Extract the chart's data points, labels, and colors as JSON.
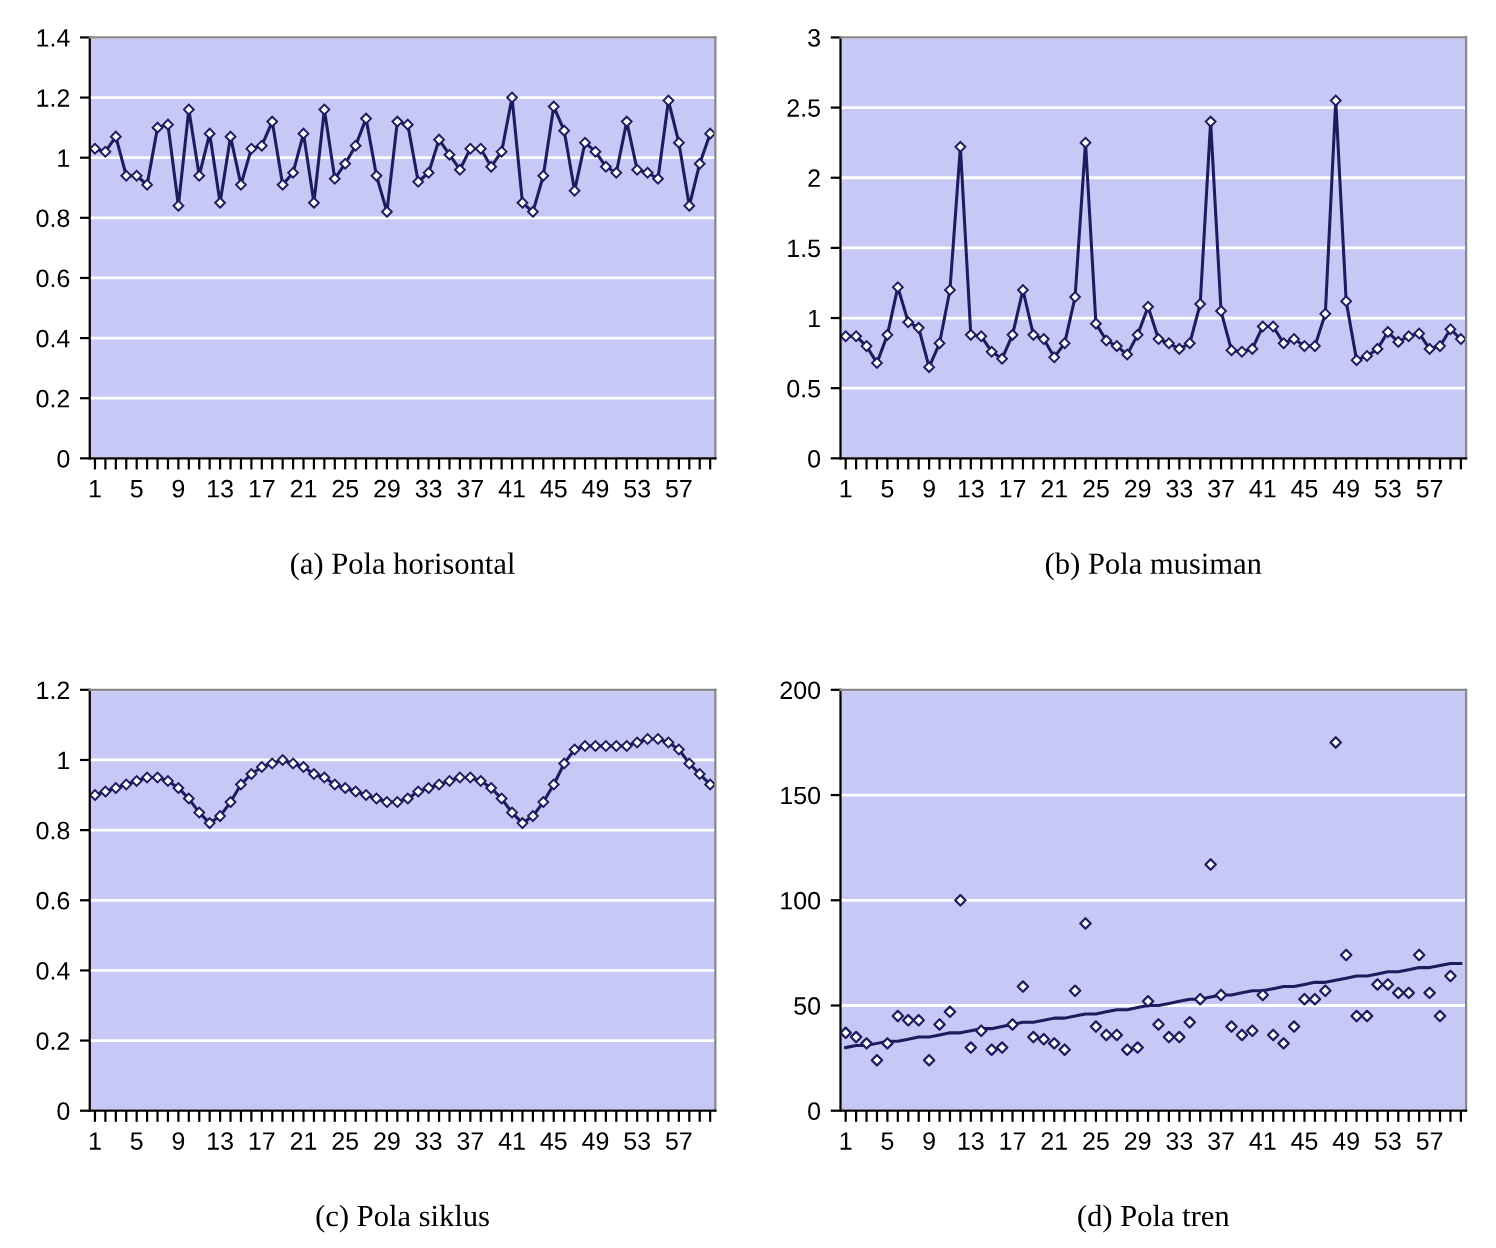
{
  "chart_data": [
    {
      "type": "line",
      "xlabel": "(a) Pola horisontal",
      "categories": [
        "1",
        null,
        null,
        null,
        "5",
        null,
        null,
        null,
        "9",
        null,
        null,
        null,
        "13",
        null,
        null,
        null,
        "17",
        null,
        null,
        null,
        "21",
        null,
        null,
        null,
        "25",
        null,
        null,
        null,
        "29",
        null,
        null,
        null,
        "33",
        null,
        null,
        null,
        "37",
        null,
        null,
        null,
        "41",
        null,
        null,
        null,
        "45",
        null,
        null,
        null,
        "49",
        null,
        null,
        null,
        "53",
        null,
        null,
        null,
        "57",
        null,
        null,
        null
      ],
      "series": [
        {
          "color": "#1c1c5e",
          "values": [
            1.03,
            1.02,
            1.07,
            0.94,
            0.94,
            0.91,
            1.1,
            1.11,
            0.84,
            1.16,
            0.94,
            1.08,
            0.85,
            1.07,
            0.91,
            1.03,
            1.04,
            1.12,
            0.91,
            0.95,
            1.08,
            0.85,
            1.16,
            0.93,
            0.98,
            1.04,
            1.13,
            0.94,
            0.82,
            1.12,
            1.11,
            0.92,
            0.95,
            1.06,
            1.01,
            0.96,
            1.03,
            1.03,
            0.97,
            1.02,
            1.2,
            0.85,
            0.82,
            0.94,
            1.17,
            1.09,
            0.89,
            1.05,
            1.02,
            0.97,
            0.95,
            1.12,
            0.96,
            0.95,
            0.93,
            1.19,
            1.05,
            0.84,
            0.98,
            1.08
          ]
        }
      ],
      "ylim": [
        0,
        1.4
      ],
      "yticks": [
        0,
        0.2,
        0.4,
        0.6,
        0.8,
        1,
        1.2,
        1.4
      ],
      "grid": "y",
      "marker": "diamond",
      "line_style": "solid"
    },
    {
      "type": "line",
      "xlabel": "(b) Pola musiman",
      "categories": [
        "1",
        null,
        null,
        null,
        "5",
        null,
        null,
        null,
        "9",
        null,
        null,
        null,
        "13",
        null,
        null,
        null,
        "17",
        null,
        null,
        null,
        "21",
        null,
        null,
        null,
        "25",
        null,
        null,
        null,
        "29",
        null,
        null,
        null,
        "33",
        null,
        null,
        null,
        "37",
        null,
        null,
        null,
        "41",
        null,
        null,
        null,
        "45",
        null,
        null,
        null,
        "49",
        null,
        null,
        null,
        "53",
        null,
        null,
        null,
        "57",
        null,
        null,
        null
      ],
      "series": [
        {
          "color": "#1c1c5e",
          "values": [
            0.87,
            0.87,
            0.8,
            0.68,
            0.88,
            1.22,
            0.97,
            0.93,
            0.65,
            0.82,
            1.2,
            2.22,
            0.88,
            0.87,
            0.76,
            0.71,
            0.88,
            1.2,
            0.88,
            0.85,
            0.72,
            0.82,
            1.15,
            2.25,
            0.96,
            0.84,
            0.8,
            0.74,
            0.88,
            1.08,
            0.85,
            0.82,
            0.78,
            0.82,
            1.1,
            2.4,
            1.05,
            0.77,
            0.76,
            0.78,
            0.94,
            0.94,
            0.82,
            0.85,
            0.8,
            0.8,
            1.03,
            2.55,
            1.12,
            0.7,
            0.73,
            0.78,
            0.9,
            0.83,
            0.87,
            0.89,
            0.78,
            0.8,
            0.92,
            0.85
          ]
        }
      ],
      "ylim": [
        0,
        3
      ],
      "yticks": [
        0,
        0.5,
        1,
        1.5,
        2,
        2.5,
        3
      ],
      "grid": "y",
      "marker": "diamond",
      "line_style": "solid"
    },
    {
      "type": "line",
      "xlabel": "(c) Pola siklus",
      "categories": [
        "1",
        null,
        null,
        null,
        "5",
        null,
        null,
        null,
        "9",
        null,
        null,
        null,
        "13",
        null,
        null,
        null,
        "17",
        null,
        null,
        null,
        "21",
        null,
        null,
        null,
        "25",
        null,
        null,
        null,
        "29",
        null,
        null,
        null,
        "33",
        null,
        null,
        null,
        "37",
        null,
        null,
        null,
        "41",
        null,
        null,
        null,
        "45",
        null,
        null,
        null,
        "49",
        null,
        null,
        null,
        "53",
        null,
        null,
        null,
        "57",
        null,
        null,
        null
      ],
      "series": [
        {
          "color": "#1c1c5e",
          "values": [
            0.9,
            0.91,
            0.92,
            0.93,
            0.94,
            0.95,
            0.95,
            0.94,
            0.92,
            0.89,
            0.85,
            0.82,
            0.84,
            0.88,
            0.93,
            0.96,
            0.98,
            0.99,
            1.0,
            0.99,
            0.98,
            0.96,
            0.95,
            0.93,
            0.92,
            0.91,
            0.9,
            0.89,
            0.88,
            0.88,
            0.89,
            0.91,
            0.92,
            0.93,
            0.94,
            0.95,
            0.95,
            0.94,
            0.92,
            0.89,
            0.85,
            0.82,
            0.84,
            0.88,
            0.93,
            0.99,
            1.03,
            1.04,
            1.04,
            1.04,
            1.04,
            1.04,
            1.05,
            1.06,
            1.06,
            1.05,
            1.03,
            0.99,
            0.96,
            0.93
          ]
        }
      ],
      "ylim": [
        0,
        1.2
      ],
      "yticks": [
        0,
        0.2,
        0.4,
        0.6,
        0.8,
        1,
        1.2
      ],
      "grid": "y",
      "marker": "diamond",
      "line_style": "solid"
    },
    {
      "type": "scatter",
      "xlabel": "(d) Pola tren",
      "categories": [
        "1",
        null,
        null,
        null,
        "5",
        null,
        null,
        null,
        "9",
        null,
        null,
        null,
        "13",
        null,
        null,
        null,
        "17",
        null,
        null,
        null,
        "21",
        null,
        null,
        null,
        "25",
        null,
        null,
        null,
        "29",
        null,
        null,
        null,
        "33",
        null,
        null,
        null,
        "37",
        null,
        null,
        null,
        "41",
        null,
        null,
        null,
        "45",
        null,
        null,
        null,
        "49",
        null,
        null,
        null,
        "53",
        null,
        null,
        null,
        "57",
        null,
        null,
        null
      ],
      "series": [
        {
          "color": "#1c1c5e",
          "values": [
            37,
            35,
            32,
            24,
            32,
            45,
            43,
            43,
            24,
            41,
            47,
            100,
            30,
            38,
            29,
            30,
            41,
            59,
            35,
            34,
            32,
            29,
            57,
            89,
            40,
            36,
            36,
            29,
            30,
            52,
            41,
            35,
            35,
            42,
            53,
            117,
            55,
            40,
            36,
            38,
            55,
            36,
            32,
            40,
            53,
            53,
            57,
            175,
            74,
            45,
            45,
            60,
            60,
            56,
            56,
            74,
            56,
            45,
            64,
            null
          ]
        },
        {
          "type": "line",
          "color": "#1c1c5e",
          "marker": "none",
          "values": [
            30,
            31,
            31,
            32,
            33,
            33,
            34,
            35,
            35,
            36,
            37,
            37,
            38,
            39,
            39,
            40,
            41,
            42,
            42,
            43,
            44,
            44,
            45,
            46,
            46,
            47,
            48,
            48,
            49,
            50,
            50,
            51,
            52,
            53,
            53,
            54,
            55,
            55,
            56,
            57,
            57,
            58,
            59,
            59,
            60,
            61,
            61,
            62,
            63,
            64,
            64,
            65,
            66,
            66,
            67,
            68,
            68,
            69,
            70,
            70
          ]
        }
      ],
      "ylim": [
        0,
        200
      ],
      "yticks": [
        0,
        50,
        100,
        150,
        200
      ],
      "grid": "y",
      "marker": "diamond"
    }
  ]
}
